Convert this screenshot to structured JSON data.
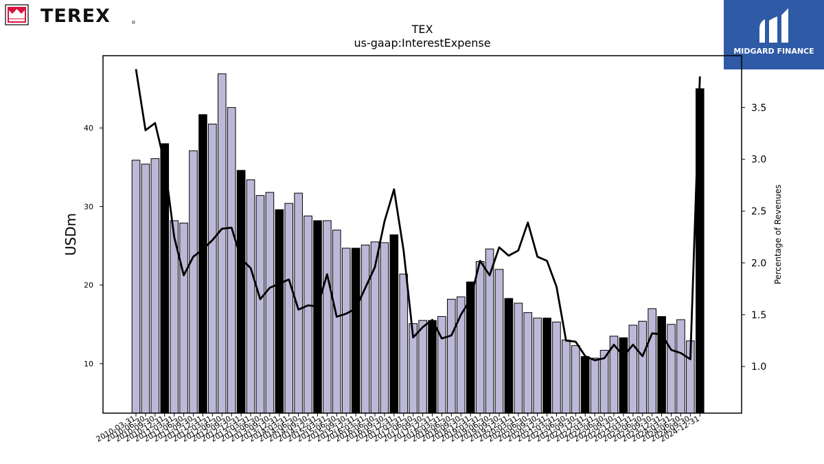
{
  "brand": {
    "left_logo_text": "TEREX",
    "left_logo_mark": "®",
    "right_logo_text": "MIDGARD FINANCE",
    "right_logo_bg": "#2e5aa6",
    "left_logo_red": "#d9143c"
  },
  "chart_data": {
    "type": "bar",
    "title": "TEX",
    "subtitle": "us-gaap:InterestExpense",
    "ylabel": "USDm",
    "y2label": "Percentage of Revenues",
    "ylim": [
      3.7,
      49.2
    ],
    "y2lim": [
      0.55,
      4.0
    ],
    "yticks": [
      10,
      20,
      30,
      40
    ],
    "y2ticks": [
      1.0,
      1.5,
      2.0,
      2.5,
      3.0,
      3.5
    ],
    "colors": {
      "bar": "#bbb8d8",
      "bar_highlight": "#000000",
      "line": "#000000"
    },
    "categories": [
      "2010-03-31",
      "2010-06-30",
      "2010-09-30",
      "2010-12-31",
      "2011-03-31",
      "2011-06-30",
      "2011-09-30",
      "2011-12-31",
      "2012-03-31",
      "2012-06-30",
      "2012-09-30",
      "2012-12-31",
      "2013-03-31",
      "2013-06-30",
      "2013-09-30",
      "2013-12-31",
      "2014-03-31",
      "2014-06-30",
      "2014-09-30",
      "2014-12-31",
      "2015-03-31",
      "2015-06-30",
      "2015-09-30",
      "2015-12-31",
      "2016-03-31",
      "2016-06-30",
      "2016-09-30",
      "2016-12-31",
      "2017-03-31",
      "2017-06-30",
      "2017-09-30",
      "2017-12-31",
      "2018-03-31",
      "2018-06-30",
      "2018-09-30",
      "2018-12-31",
      "2019-03-31",
      "2019-06-30",
      "2019-09-30",
      "2019-12-31",
      "2020-03-31",
      "2020-06-30",
      "2020-09-30",
      "2020-12-31",
      "2021-03-31",
      "2021-06-30",
      "2021-09-30",
      "2021-12-31",
      "2022-03-31",
      "2022-06-30",
      "2022-09-30",
      "2022-12-31",
      "2023-03-31",
      "2023-06-30",
      "2023-09-30",
      "2023-12-31",
      "2024-03-31",
      "2024-06-30",
      "2024-09-30",
      "2024-12-31"
    ],
    "series": [
      {
        "kind": "bar",
        "values": [
          35.9,
          35.4,
          36.1,
          38.0,
          28.2,
          27.9,
          37.1,
          41.7,
          40.5,
          46.9,
          42.6,
          34.6,
          33.4,
          31.4,
          31.8,
          29.6,
          30.4,
          31.7,
          28.8,
          28.2,
          28.2,
          27.0,
          24.7,
          24.7,
          25.1,
          25.5,
          25.4,
          26.4,
          21.4,
          15.1,
          15.5,
          15.5,
          16.0,
          18.2,
          18.5,
          20.4,
          23.0,
          24.6,
          22.0,
          18.3,
          17.7,
          16.5,
          15.8,
          15.8,
          15.3,
          13.0,
          12.3,
          10.9,
          10.7,
          11.7,
          13.5,
          13.3,
          14.9,
          15.4,
          17.0,
          16.0,
          15.0,
          15.6,
          12.9,
          45.0
        ],
        "highlight": [
          false,
          false,
          false,
          true,
          false,
          false,
          false,
          true,
          false,
          false,
          false,
          true,
          false,
          false,
          false,
          true,
          false,
          false,
          false,
          true,
          false,
          false,
          false,
          true,
          false,
          false,
          false,
          true,
          false,
          false,
          false,
          true,
          false,
          false,
          false,
          true,
          false,
          false,
          false,
          true,
          false,
          false,
          false,
          true,
          false,
          false,
          false,
          true,
          false,
          false,
          false,
          true,
          false,
          false,
          false,
          true,
          false,
          false,
          false,
          true
        ]
      },
      {
        "kind": "line",
        "axis": "right",
        "values": [
          3.87,
          3.28,
          3.35,
          2.96,
          2.25,
          1.88,
          2.06,
          2.13,
          2.22,
          2.33,
          2.34,
          2.04,
          1.95,
          1.65,
          1.76,
          1.8,
          1.84,
          1.55,
          1.59,
          1.58,
          1.89,
          1.48,
          1.51,
          1.56,
          1.76,
          1.96,
          2.4,
          2.71,
          2.12,
          1.28,
          1.38,
          1.45,
          1.27,
          1.3,
          1.5,
          1.65,
          2.02,
          1.88,
          2.15,
          2.07,
          2.12,
          2.39,
          2.06,
          2.02,
          1.77,
          1.25,
          1.24,
          1.1,
          1.06,
          1.08,
          1.21,
          1.1,
          1.21,
          1.1,
          1.32,
          1.31,
          1.16,
          1.13,
          1.07,
          3.8
        ]
      }
    ],
    "grid": false,
    "legend": "none"
  }
}
